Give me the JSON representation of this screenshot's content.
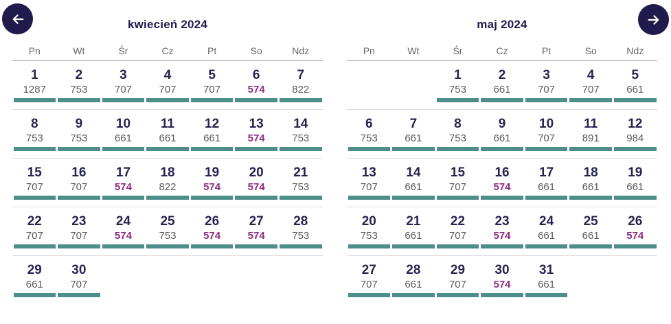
{
  "nav": {
    "prev": {
      "icon": "arrow-left-icon"
    },
    "next": {
      "icon": "arrow-right-icon"
    }
  },
  "colors": {
    "navy": "#201b4d",
    "teal": "#4d8d8a",
    "purple": "#8e2a80",
    "day_number": "#262450",
    "price_gray": "#595959",
    "row_border": "#d9d9d9",
    "header_border": "#a2a2a2"
  },
  "months": [
    {
      "title": "kwiecień 2024",
      "weekdays": [
        "Pn",
        "Wt",
        "Śr",
        "Cz",
        "Pt",
        "So",
        "Ndz"
      ],
      "weeks": [
        [
          {
            "day": "1",
            "price": "1287",
            "hl": false
          },
          {
            "day": "2",
            "price": "753",
            "hl": false
          },
          {
            "day": "3",
            "price": "707",
            "hl": false
          },
          {
            "day": "4",
            "price": "707",
            "hl": false
          },
          {
            "day": "5",
            "price": "707",
            "hl": false
          },
          {
            "day": "6",
            "price": "574",
            "hl": true
          },
          {
            "day": "7",
            "price": "822",
            "hl": false
          }
        ],
        [
          {
            "day": "8",
            "price": "753",
            "hl": false
          },
          {
            "day": "9",
            "price": "753",
            "hl": false
          },
          {
            "day": "10",
            "price": "661",
            "hl": false
          },
          {
            "day": "11",
            "price": "661",
            "hl": false
          },
          {
            "day": "12",
            "price": "661",
            "hl": false
          },
          {
            "day": "13",
            "price": "574",
            "hl": true
          },
          {
            "day": "14",
            "price": "753",
            "hl": false
          }
        ],
        [
          {
            "day": "15",
            "price": "707",
            "hl": false
          },
          {
            "day": "16",
            "price": "707",
            "hl": false
          },
          {
            "day": "17",
            "price": "574",
            "hl": true
          },
          {
            "day": "18",
            "price": "822",
            "hl": false
          },
          {
            "day": "19",
            "price": "574",
            "hl": true
          },
          {
            "day": "20",
            "price": "574",
            "hl": true
          },
          {
            "day": "21",
            "price": "753",
            "hl": false
          }
        ],
        [
          {
            "day": "22",
            "price": "707",
            "hl": false
          },
          {
            "day": "23",
            "price": "707",
            "hl": false
          },
          {
            "day": "24",
            "price": "574",
            "hl": true
          },
          {
            "day": "25",
            "price": "753",
            "hl": false
          },
          {
            "day": "26",
            "price": "574",
            "hl": true
          },
          {
            "day": "27",
            "price": "574",
            "hl": true
          },
          {
            "day": "28",
            "price": "753",
            "hl": false
          }
        ],
        [
          {
            "day": "29",
            "price": "661",
            "hl": false
          },
          {
            "day": "30",
            "price": "707",
            "hl": false
          },
          null,
          null,
          null,
          null,
          null
        ]
      ]
    },
    {
      "title": "maj 2024",
      "weekdays": [
        "Pn",
        "Wt",
        "Śr",
        "Cz",
        "Pt",
        "So",
        "Ndz"
      ],
      "weeks": [
        [
          null,
          null,
          {
            "day": "1",
            "price": "753",
            "hl": false
          },
          {
            "day": "2",
            "price": "661",
            "hl": false
          },
          {
            "day": "3",
            "price": "707",
            "hl": false
          },
          {
            "day": "4",
            "price": "707",
            "hl": false
          },
          {
            "day": "5",
            "price": "661",
            "hl": false
          }
        ],
        [
          {
            "day": "6",
            "price": "753",
            "hl": false
          },
          {
            "day": "7",
            "price": "661",
            "hl": false
          },
          {
            "day": "8",
            "price": "753",
            "hl": false
          },
          {
            "day": "9",
            "price": "661",
            "hl": false
          },
          {
            "day": "10",
            "price": "707",
            "hl": false
          },
          {
            "day": "11",
            "price": "891",
            "hl": false
          },
          {
            "day": "12",
            "price": "984",
            "hl": false
          }
        ],
        [
          {
            "day": "13",
            "price": "707",
            "hl": false
          },
          {
            "day": "14",
            "price": "661",
            "hl": false
          },
          {
            "day": "15",
            "price": "707",
            "hl": false
          },
          {
            "day": "16",
            "price": "574",
            "hl": true
          },
          {
            "day": "17",
            "price": "661",
            "hl": false
          },
          {
            "day": "18",
            "price": "661",
            "hl": false
          },
          {
            "day": "19",
            "price": "661",
            "hl": false
          }
        ],
        [
          {
            "day": "20",
            "price": "753",
            "hl": false
          },
          {
            "day": "21",
            "price": "661",
            "hl": false
          },
          {
            "day": "22",
            "price": "707",
            "hl": false
          },
          {
            "day": "23",
            "price": "574",
            "hl": true
          },
          {
            "day": "24",
            "price": "661",
            "hl": false
          },
          {
            "day": "25",
            "price": "661",
            "hl": false
          },
          {
            "day": "26",
            "price": "574",
            "hl": true
          }
        ],
        [
          {
            "day": "27",
            "price": "707",
            "hl": false
          },
          {
            "day": "28",
            "price": "661",
            "hl": false
          },
          {
            "day": "29",
            "price": "707",
            "hl": false
          },
          {
            "day": "30",
            "price": "574",
            "hl": true
          },
          {
            "day": "31",
            "price": "661",
            "hl": false
          },
          null,
          null
        ]
      ]
    }
  ]
}
